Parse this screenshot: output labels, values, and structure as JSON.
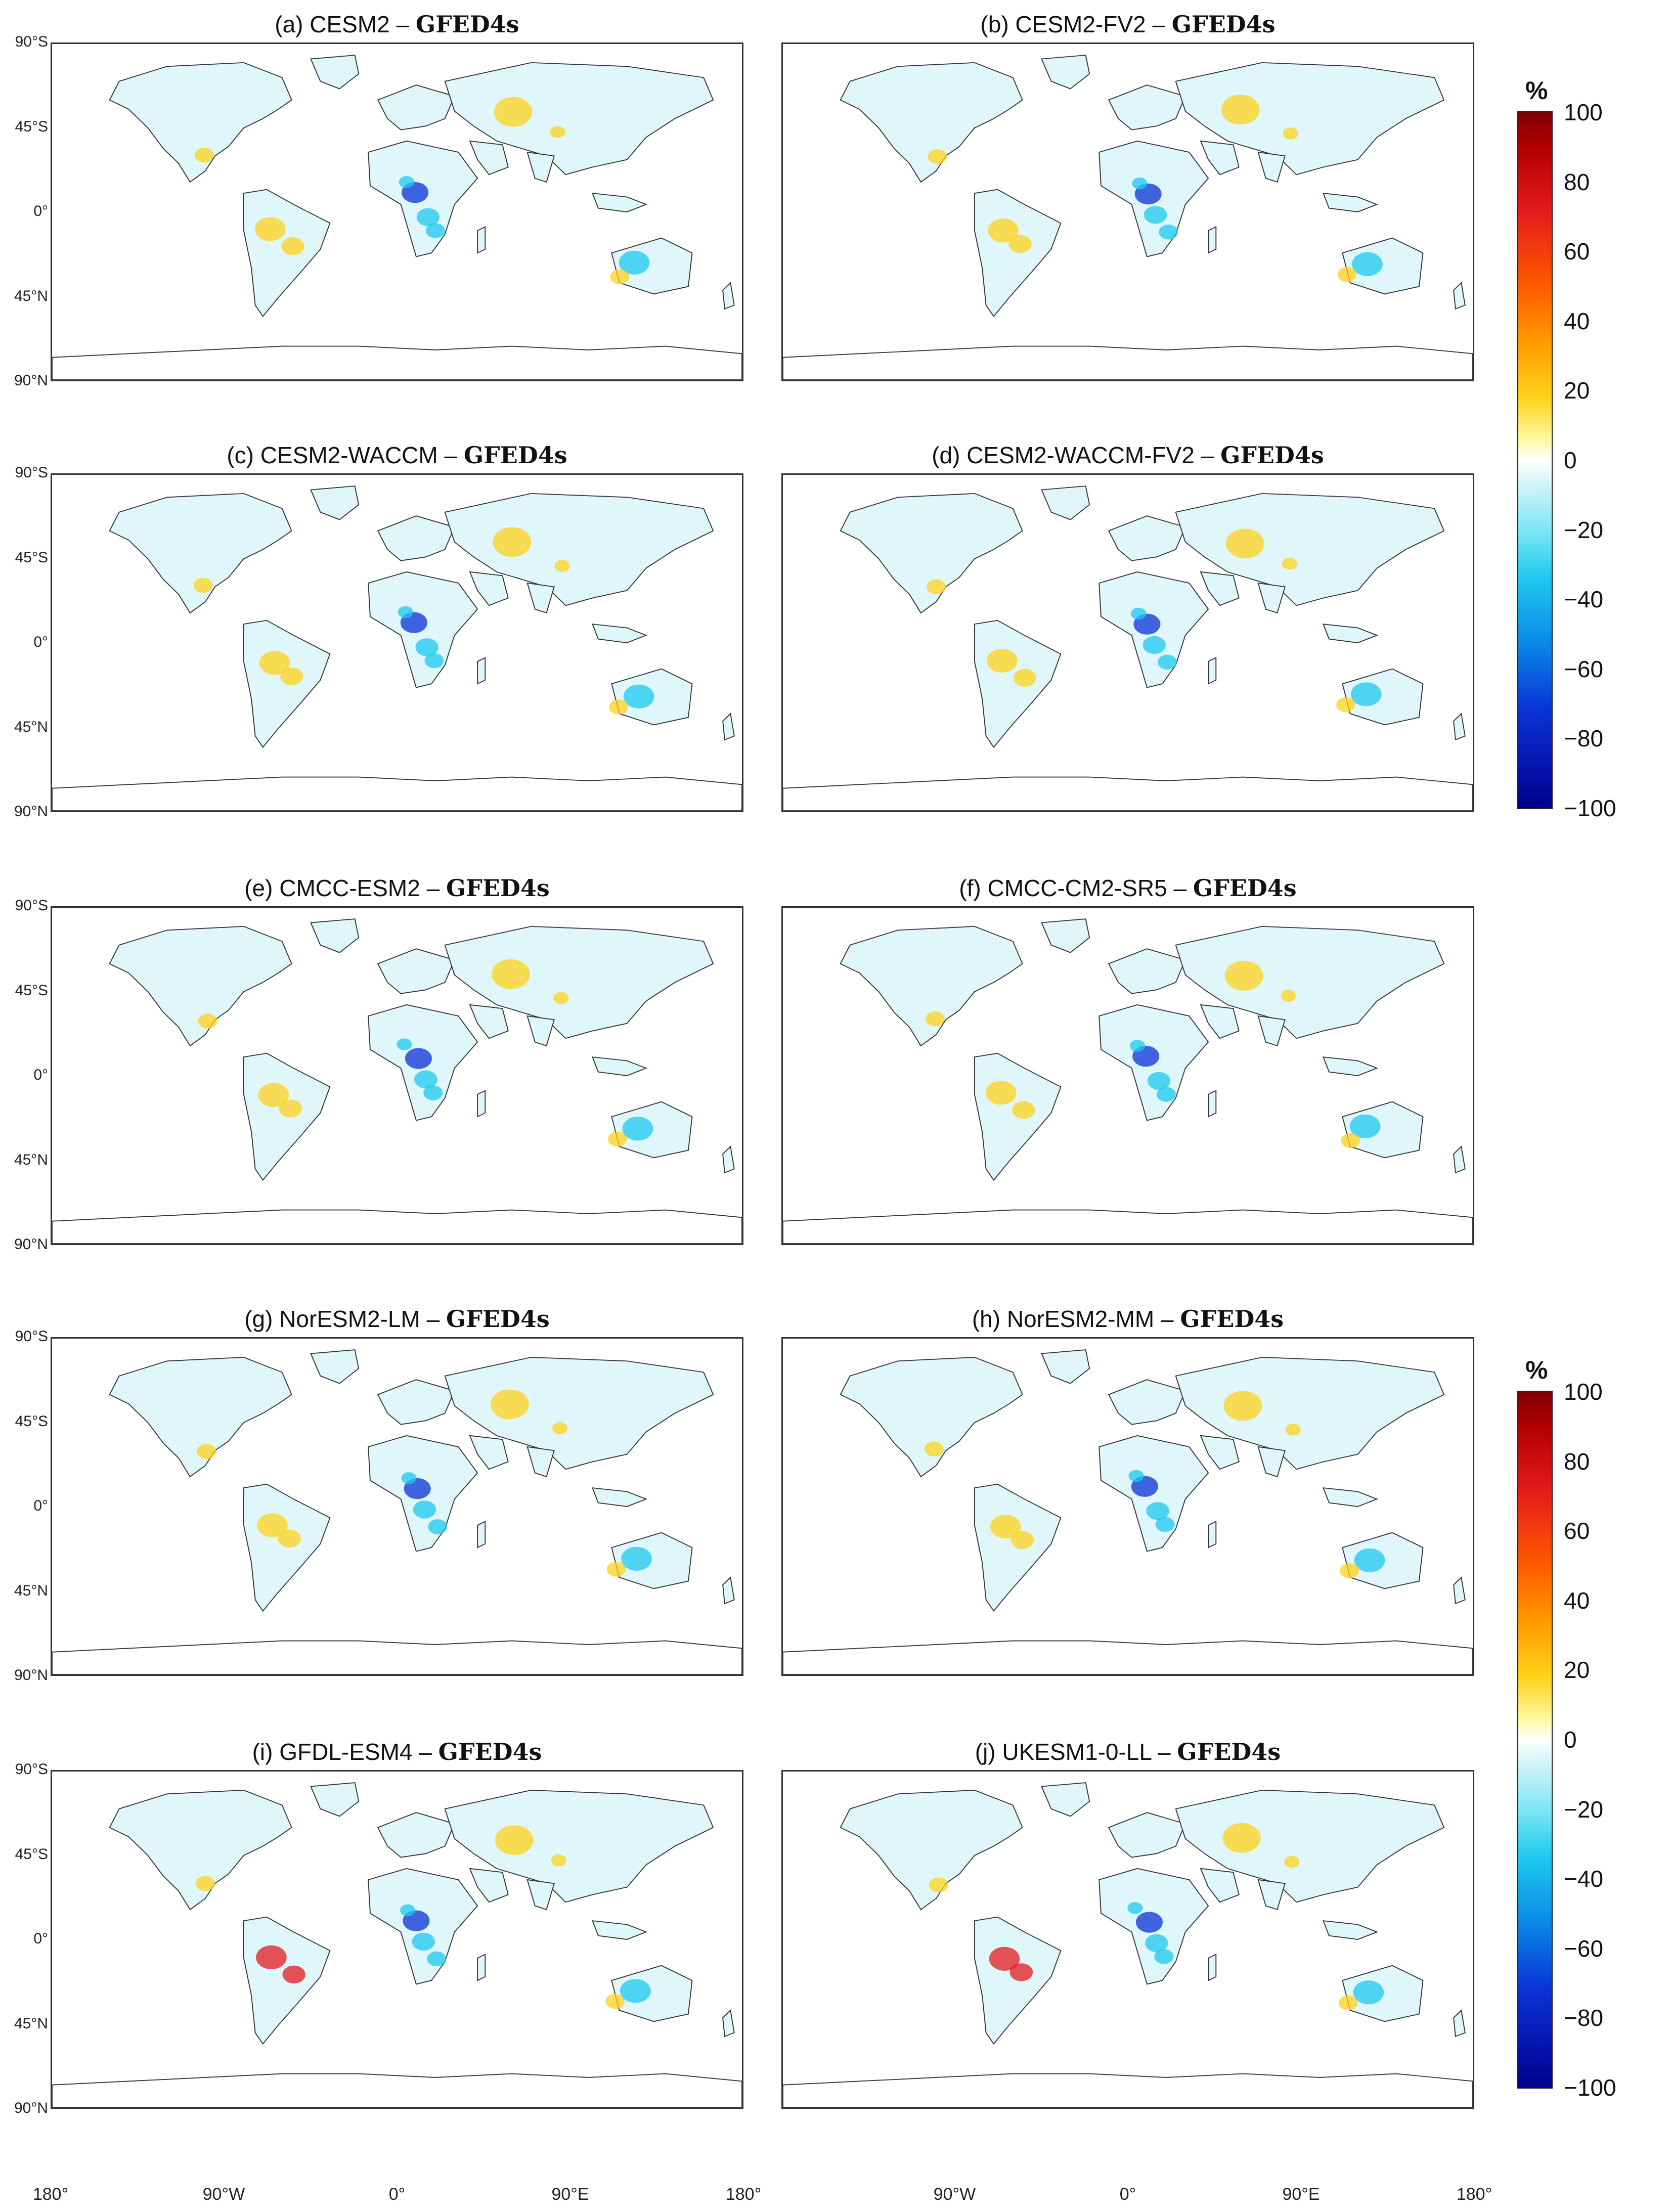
{
  "panels": [
    {
      "model": "(a) CESM2",
      "reference": "GFED4s",
      "sep": " – "
    },
    {
      "model": "(b) CESM2-FV2",
      "reference": "GFED4s",
      "sep": " – "
    },
    {
      "model": "(c) CESM2-WACCM",
      "reference": "GFED4s",
      "sep": " – "
    },
    {
      "model": "(d) CESM2-WACCM-FV2",
      "reference": "GFED4s",
      "sep": " – "
    },
    {
      "model": "(e) CMCC-ESM2",
      "reference": "GFED4s",
      "sep": " – "
    },
    {
      "model": "(f) CMCC-CM2-SR5",
      "reference": "GFED4s",
      "sep": " – "
    },
    {
      "model": "(g) NorESM2-LM",
      "reference": "GFED4s",
      "sep": " – "
    },
    {
      "model": "(h) NorESM2-MM",
      "reference": "GFED4s",
      "sep": " – "
    },
    {
      "model": "(i) GFDL-ESM4",
      "reference": "GFED4s",
      "sep": " – "
    },
    {
      "model": "(j) UKESM1-0-LL",
      "reference": "GFED4s",
      "sep": " – "
    }
  ],
  "lat_labels": [
    "90°S",
    "45°S",
    "0°",
    "45°N",
    "90°N"
  ],
  "lon_labels": [
    "180°",
    "90°W",
    "0°",
    "90°E",
    "180°"
  ],
  "colorbar": {
    "unit": "%",
    "ticks": [
      "100",
      "80",
      "60",
      "40",
      "20",
      "0",
      "−20",
      "−40",
      "−60",
      "−80",
      "−100"
    ]
  },
  "colors": {
    "land": "#dff6fb",
    "coast": "#333333",
    "positive": "#ffd21a",
    "negative": "#1ec8f0",
    "strong_negative": "#0a32d6",
    "strong_positive": "#e31a1c"
  }
}
